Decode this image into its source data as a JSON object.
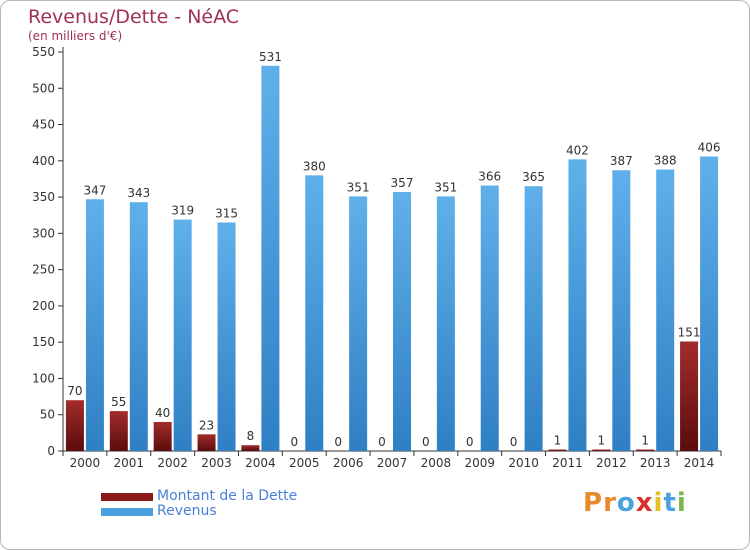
{
  "header": {
    "title": "Revenus/Dette - NéAC",
    "subtitle": "(en milliers d'€)"
  },
  "logo": {
    "text": "Proxiti",
    "letters": [
      "P",
      "r",
      "o",
      "x",
      "i",
      "t",
      "i"
    ],
    "colors": [
      "#e88a2b",
      "#e88a2b",
      "#4aa3df",
      "#d9302c",
      "#e8c020",
      "#4aa3df",
      "#7ab648"
    ]
  },
  "colors": {
    "debt": "#8b1a1a",
    "revenue": "#4a9fe0",
    "title": "#a0305a",
    "legend_text": "#4a7fd9"
  },
  "chart_data": {
    "type": "bar",
    "title": "Revenus/Dette - NéAC",
    "subtitle": "(en milliers d'€)",
    "categories": [
      "2000",
      "2001",
      "2002",
      "2003",
      "2004",
      "2005",
      "2006",
      "2007",
      "2008",
      "2009",
      "2010",
      "2011",
      "2012",
      "2013",
      "2014"
    ],
    "series": [
      {
        "name": "Montant de la Dette",
        "values": [
          70,
          55,
          40,
          23,
          8,
          0,
          0,
          0,
          0,
          0,
          0,
          1,
          1,
          1,
          151
        ]
      },
      {
        "name": "Revenus",
        "values": [
          347,
          343,
          319,
          315,
          531,
          380,
          351,
          357,
          351,
          366,
          365,
          402,
          387,
          388,
          406
        ]
      }
    ],
    "ylim": [
      0,
      550
    ],
    "yticks": [
      0,
      50,
      100,
      150,
      200,
      250,
      300,
      350,
      400,
      450,
      500,
      550
    ],
    "grid": false,
    "legend_position": "bottom-left"
  }
}
